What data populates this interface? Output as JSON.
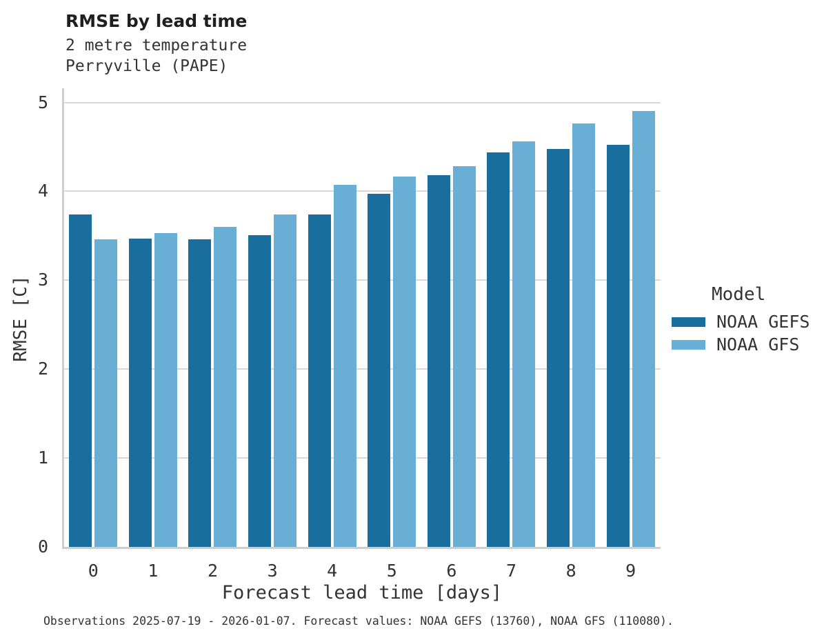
{
  "title": "RMSE by lead time",
  "subtitle_line1": "2 metre temperature",
  "subtitle_line2": "Perryville (PAPE)",
  "caption": "Observations 2025-07-19 - 2026-01-07. Forecast values: NOAA GEFS (13760), NOAA GFS (110080).",
  "colors": {
    "gefs_bar": "#1a6e9e",
    "gfs_bar": "#69aed5",
    "gridline": "#d9d9d9",
    "spine": "#cdcdcd",
    "text": "#333333"
  },
  "chart_data": {
    "type": "bar",
    "title": "RMSE by lead time",
    "subtitle": [
      "2 metre temperature",
      "Perryville (PAPE)"
    ],
    "categories": [
      "0",
      "1",
      "2",
      "3",
      "4",
      "5",
      "6",
      "7",
      "8",
      "9"
    ],
    "series": [
      {
        "name": "NOAA GEFS",
        "color": "#1a6e9e",
        "values": [
          3.74,
          3.47,
          3.46,
          3.51,
          3.74,
          3.97,
          4.18,
          4.44,
          4.48,
          4.52
        ]
      },
      {
        "name": "NOAA GFS",
        "color": "#69aed5",
        "values": [
          3.46,
          3.53,
          3.6,
          3.74,
          4.07,
          4.17,
          4.28,
          4.56,
          4.76,
          4.9
        ]
      }
    ],
    "xlabel": "Forecast lead time [days]",
    "ylabel": "RMSE [C]",
    "ylim": [
      0,
      5.15
    ],
    "yticks": [
      0,
      1,
      2,
      3,
      4,
      5
    ],
    "grid": true,
    "legend_title": "Model",
    "legend_position": "right of plot"
  }
}
